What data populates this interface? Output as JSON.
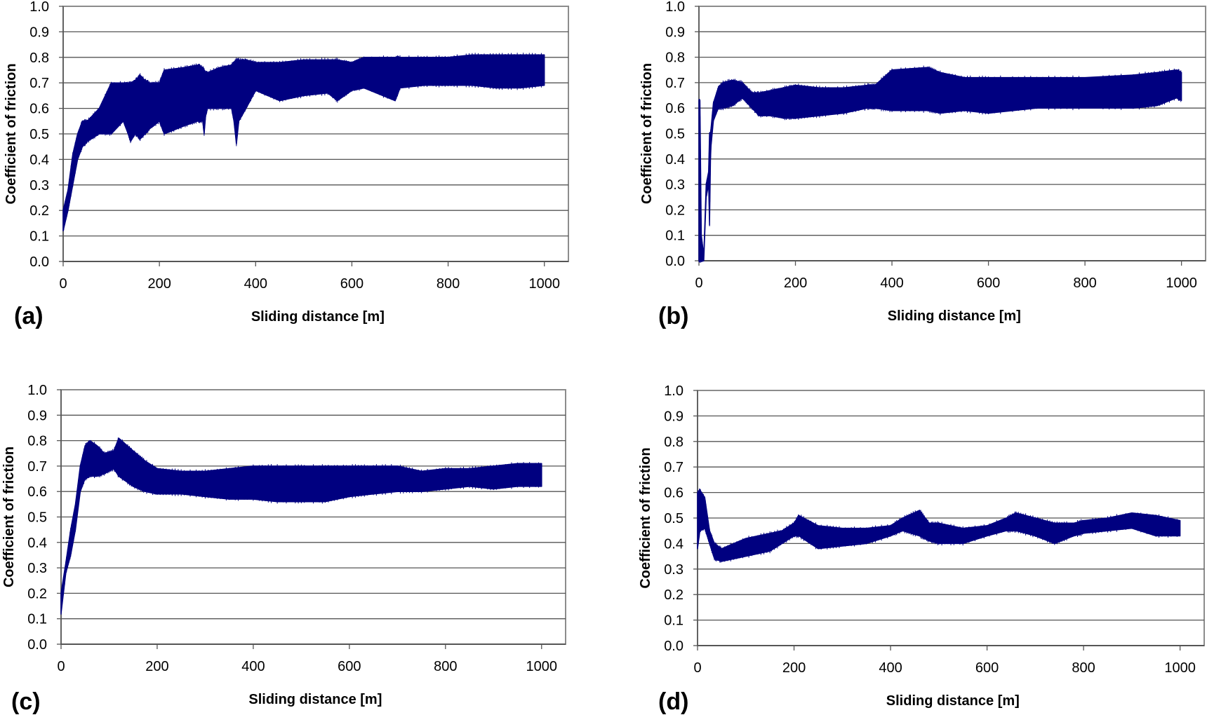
{
  "chart_data": [
    {
      "panel_label": "(a)",
      "type": "area",
      "style": "filled band (min/max envelope of oscillating signal)",
      "xlabel": "Sliding distance [m]",
      "ylabel": "Coefficient of friction",
      "xlim": [
        0,
        1050
      ],
      "ylim": [
        0,
        1.0
      ],
      "xticks": [
        "0",
        "200",
        "400",
        "600",
        "800",
        "1000"
      ],
      "yticks": [
        "0.0",
        "0.1",
        "0.2",
        "0.3",
        "0.4",
        "0.5",
        "0.6",
        "0.7",
        "0.8",
        "0.9",
        "1.0"
      ],
      "grid": "horizontal",
      "color": "#000080",
      "x": [
        0,
        10,
        20,
        30,
        40,
        50,
        75,
        100,
        125,
        135,
        140,
        150,
        160,
        170,
        180,
        200,
        210,
        250,
        280,
        290,
        293,
        296,
        300,
        325,
        350,
        355,
        360,
        365,
        380,
        400,
        450,
        500,
        550,
        570,
        600,
        625,
        690,
        700,
        750,
        800,
        850,
        900,
        950,
        1000
      ],
      "lower": [
        0.12,
        0.2,
        0.3,
        0.4,
        0.45,
        0.47,
        0.5,
        0.5,
        0.55,
        0.5,
        0.47,
        0.5,
        0.48,
        0.5,
        0.52,
        0.55,
        0.5,
        0.53,
        0.55,
        0.55,
        0.5,
        0.57,
        0.6,
        0.6,
        0.6,
        0.55,
        0.46,
        0.55,
        0.6,
        0.67,
        0.63,
        0.65,
        0.66,
        0.63,
        0.67,
        0.68,
        0.63,
        0.68,
        0.69,
        0.69,
        0.69,
        0.68,
        0.68,
        0.69
      ],
      "upper": [
        0.2,
        0.28,
        0.42,
        0.5,
        0.55,
        0.55,
        0.6,
        0.7,
        0.7,
        0.7,
        0.7,
        0.71,
        0.73,
        0.71,
        0.7,
        0.7,
        0.75,
        0.76,
        0.77,
        0.76,
        0.75,
        0.74,
        0.74,
        0.76,
        0.77,
        0.78,
        0.79,
        0.79,
        0.79,
        0.78,
        0.78,
        0.79,
        0.79,
        0.79,
        0.78,
        0.8,
        0.8,
        0.8,
        0.8,
        0.8,
        0.81,
        0.81,
        0.81,
        0.81
      ]
    },
    {
      "panel_label": "(b)",
      "type": "area",
      "style": "filled band (min/max envelope of oscillating signal)",
      "xlabel": "Sliding distance [m]",
      "ylabel": "Coefficient of friction",
      "xlim": [
        0,
        1050
      ],
      "ylim": [
        0,
        1.0
      ],
      "xticks": [
        "0",
        "200",
        "400",
        "600",
        "800",
        "1000"
      ],
      "yticks": [
        "0.0",
        "0.1",
        "0.2",
        "0.3",
        "0.4",
        "0.5",
        "0.6",
        "0.7",
        "0.8",
        "0.9",
        "1.0"
      ],
      "grid": "horizontal",
      "color": "#000080",
      "x": [
        0,
        2,
        5,
        10,
        15,
        20,
        22,
        24,
        25,
        30,
        40,
        50,
        70,
        90,
        110,
        125,
        150,
        175,
        200,
        250,
        300,
        350,
        365,
        400,
        475,
        500,
        550,
        600,
        700,
        800,
        900,
        950,
        990,
        1000
      ],
      "lower": [
        0.0,
        0.0,
        0.0,
        0.0,
        0.25,
        0.3,
        0.14,
        0.4,
        0.45,
        0.55,
        0.6,
        0.6,
        0.61,
        0.64,
        0.6,
        0.57,
        0.57,
        0.56,
        0.56,
        0.57,
        0.58,
        0.6,
        0.6,
        0.59,
        0.59,
        0.58,
        0.59,
        0.58,
        0.6,
        0.6,
        0.6,
        0.61,
        0.64,
        0.63
      ],
      "upper": [
        0.63,
        0.63,
        0.1,
        0.02,
        0.3,
        0.35,
        0.5,
        0.5,
        0.52,
        0.62,
        0.68,
        0.7,
        0.71,
        0.7,
        0.66,
        0.66,
        0.67,
        0.68,
        0.69,
        0.68,
        0.68,
        0.69,
        0.69,
        0.75,
        0.76,
        0.74,
        0.72,
        0.72,
        0.72,
        0.72,
        0.73,
        0.74,
        0.75,
        0.74
      ]
    },
    {
      "panel_label": "(c)",
      "type": "area",
      "style": "filled band (min/max envelope of oscillating signal)",
      "xlabel": "Sliding distance [m]",
      "ylabel": "Coefficient of friction",
      "xlim": [
        0,
        1050
      ],
      "ylim": [
        0,
        1.0
      ],
      "xticks": [
        "0",
        "200",
        "400",
        "600",
        "800",
        "1000"
      ],
      "yticks": [
        "0.0",
        "0.1",
        "0.2",
        "0.3",
        "0.4",
        "0.5",
        "0.6",
        "0.7",
        "0.8",
        "0.9",
        "1.0"
      ],
      "grid": "horizontal",
      "color": "#000080",
      "x": [
        0,
        10,
        20,
        30,
        40,
        50,
        60,
        75,
        90,
        110,
        120,
        150,
        175,
        200,
        250,
        300,
        350,
        400,
        450,
        500,
        550,
        600,
        650,
        700,
        750,
        800,
        850,
        900,
        950,
        1000
      ],
      "lower": [
        0.12,
        0.28,
        0.35,
        0.45,
        0.6,
        0.65,
        0.66,
        0.66,
        0.67,
        0.69,
        0.66,
        0.62,
        0.6,
        0.59,
        0.59,
        0.58,
        0.57,
        0.57,
        0.56,
        0.56,
        0.56,
        0.58,
        0.59,
        0.6,
        0.6,
        0.61,
        0.62,
        0.61,
        0.62,
        0.62
      ],
      "upper": [
        0.2,
        0.32,
        0.45,
        0.55,
        0.7,
        0.78,
        0.8,
        0.78,
        0.75,
        0.76,
        0.81,
        0.76,
        0.72,
        0.69,
        0.68,
        0.68,
        0.69,
        0.7,
        0.7,
        0.7,
        0.7,
        0.7,
        0.7,
        0.7,
        0.68,
        0.69,
        0.69,
        0.7,
        0.71,
        0.71
      ]
    },
    {
      "panel_label": "(d)",
      "type": "area",
      "style": "filled band (min/max envelope of oscillating signal)",
      "xlabel": "Sliding distance [m]",
      "ylabel": "Coefficient of friction",
      "xlim": [
        0,
        1050
      ],
      "ylim": [
        0,
        1.0
      ],
      "xticks": [
        "0",
        "200",
        "400",
        "600",
        "800",
        "1000"
      ],
      "yticks": [
        "0.0",
        "0.1",
        "0.2",
        "0.3",
        "0.4",
        "0.5",
        "0.6",
        "0.7",
        "0.8",
        "0.9",
        "1.0"
      ],
      "grid": "horizontal",
      "color": "#000080",
      "x": [
        0,
        5,
        15,
        25,
        35,
        50,
        100,
        150,
        175,
        200,
        210,
        250,
        300,
        350,
        400,
        425,
        460,
        480,
        500,
        550,
        600,
        640,
        660,
        700,
        740,
        780,
        800,
        850,
        900,
        950,
        1000
      ],
      "lower": [
        0.38,
        0.45,
        0.46,
        0.4,
        0.34,
        0.33,
        0.35,
        0.37,
        0.4,
        0.43,
        0.43,
        0.38,
        0.39,
        0.4,
        0.43,
        0.45,
        0.43,
        0.41,
        0.4,
        0.4,
        0.43,
        0.45,
        0.45,
        0.43,
        0.4,
        0.43,
        0.44,
        0.45,
        0.46,
        0.43,
        0.43
      ],
      "upper": [
        0.6,
        0.61,
        0.58,
        0.45,
        0.4,
        0.38,
        0.42,
        0.44,
        0.45,
        0.48,
        0.51,
        0.47,
        0.46,
        0.46,
        0.47,
        0.5,
        0.53,
        0.48,
        0.48,
        0.46,
        0.47,
        0.5,
        0.52,
        0.5,
        0.48,
        0.48,
        0.49,
        0.5,
        0.52,
        0.51,
        0.49
      ]
    }
  ]
}
